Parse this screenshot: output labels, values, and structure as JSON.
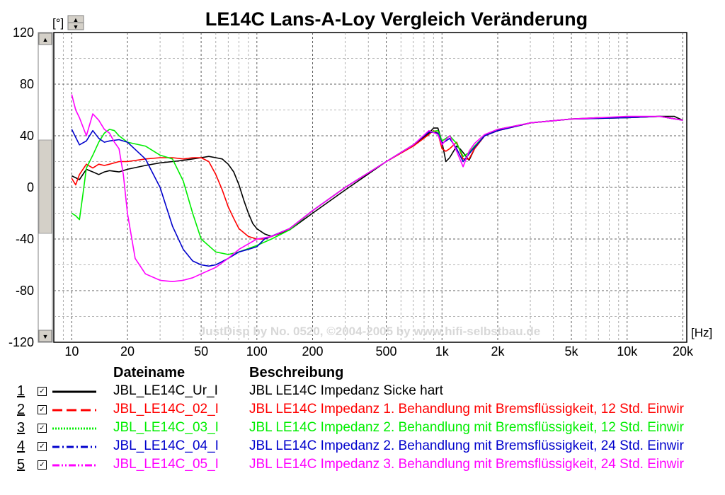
{
  "chart_data": {
    "type": "line",
    "title": "LE14C Lans-A-Loy Vergleich Veränderung",
    "y_unit": "[°]",
    "x_unit": "[Hz]",
    "watermark": "JustDisp by No. 0520, ©2004-2005 by www.hifi-selbstbau.de",
    "x_scale": "log",
    "xlim": [
      8,
      21000
    ],
    "ylim": [
      -120,
      120
    ],
    "grid": true,
    "x_ticks": [
      {
        "value": 10,
        "label": "10"
      },
      {
        "value": 20,
        "label": "20"
      },
      {
        "value": 50,
        "label": "50"
      },
      {
        "value": 100,
        "label": "100"
      },
      {
        "value": 200,
        "label": "200"
      },
      {
        "value": 500,
        "label": "500"
      },
      {
        "value": 1000,
        "label": "1k"
      },
      {
        "value": 2000,
        "label": "2k"
      },
      {
        "value": 5000,
        "label": "5k"
      },
      {
        "value": 10000,
        "label": "10k"
      },
      {
        "value": 20000,
        "label": "20k"
      }
    ],
    "y_ticks": [
      {
        "value": 120,
        "label": "120"
      },
      {
        "value": 80,
        "label": "80"
      },
      {
        "value": 40,
        "label": "40"
      },
      {
        "value": 0,
        "label": "0"
      },
      {
        "value": -40,
        "label": "-40"
      },
      {
        "value": -80,
        "label": "-80"
      },
      {
        "value": -120,
        "label": "-120"
      }
    ],
    "series": [
      {
        "name": "JBL_LE14C_Ur_I",
        "color": "#000000",
        "dash": "solid",
        "points": [
          [
            10,
            9
          ],
          [
            11,
            6
          ],
          [
            12,
            14
          ],
          [
            13,
            12
          ],
          [
            14,
            10
          ],
          [
            15,
            12
          ],
          [
            16,
            13
          ],
          [
            18,
            12
          ],
          [
            20,
            14
          ],
          [
            25,
            17
          ],
          [
            30,
            19
          ],
          [
            35,
            20
          ],
          [
            40,
            21
          ],
          [
            45,
            22
          ],
          [
            50,
            23
          ],
          [
            55,
            24
          ],
          [
            60,
            23
          ],
          [
            65,
            22
          ],
          [
            70,
            18
          ],
          [
            75,
            12
          ],
          [
            80,
            2
          ],
          [
            85,
            -10
          ],
          [
            90,
            -20
          ],
          [
            95,
            -28
          ],
          [
            100,
            -32
          ],
          [
            110,
            -36
          ],
          [
            120,
            -38
          ],
          [
            150,
            -33
          ],
          [
            200,
            -20
          ],
          [
            300,
            -2
          ],
          [
            500,
            20
          ],
          [
            700,
            33
          ],
          [
            850,
            42
          ],
          [
            900,
            46
          ],
          [
            950,
            46
          ],
          [
            1000,
            35
          ],
          [
            1050,
            20
          ],
          [
            1100,
            23
          ],
          [
            1200,
            32
          ],
          [
            1250,
            30
          ],
          [
            1300,
            27
          ],
          [
            1400,
            21
          ],
          [
            1500,
            30
          ],
          [
            1700,
            40
          ],
          [
            2000,
            44
          ],
          [
            3000,
            50
          ],
          [
            5000,
            53
          ],
          [
            7000,
            54
          ],
          [
            10000,
            54
          ],
          [
            15000,
            55
          ],
          [
            18000,
            55
          ],
          [
            20000,
            52
          ]
        ]
      },
      {
        "name": "JBL_LE14C_02_I",
        "color": "#ff0000",
        "dash": "long-dash",
        "points": [
          [
            10,
            7
          ],
          [
            10.5,
            2
          ],
          [
            11,
            10
          ],
          [
            12,
            18
          ],
          [
            13,
            15
          ],
          [
            14,
            18
          ],
          [
            15,
            17
          ],
          [
            16,
            18
          ],
          [
            18,
            20
          ],
          [
            20,
            20
          ],
          [
            25,
            22
          ],
          [
            30,
            23
          ],
          [
            35,
            23
          ],
          [
            40,
            22
          ],
          [
            45,
            23
          ],
          [
            50,
            23
          ],
          [
            55,
            20
          ],
          [
            60,
            10
          ],
          [
            65,
            -2
          ],
          [
            70,
            -15
          ],
          [
            75,
            -24
          ],
          [
            80,
            -32
          ],
          [
            90,
            -38
          ],
          [
            100,
            -40
          ],
          [
            110,
            -40
          ],
          [
            120,
            -38
          ],
          [
            150,
            -32
          ],
          [
            200,
            -18
          ],
          [
            300,
            0
          ],
          [
            500,
            20
          ],
          [
            700,
            32
          ],
          [
            850,
            41
          ],
          [
            900,
            44
          ],
          [
            950,
            42
          ],
          [
            1000,
            30
          ],
          [
            1050,
            28
          ],
          [
            1100,
            30
          ],
          [
            1200,
            35
          ],
          [
            1300,
            22
          ],
          [
            1400,
            22
          ],
          [
            1500,
            30
          ],
          [
            1700,
            40
          ],
          [
            2000,
            44
          ],
          [
            3000,
            50
          ],
          [
            5000,
            53
          ],
          [
            10000,
            54
          ],
          [
            15000,
            55
          ],
          [
            20000,
            52
          ]
        ]
      },
      {
        "name": "JBL_LE14C_03_I",
        "color": "#00ee00",
        "dash": "dotted",
        "points": [
          [
            10,
            -20
          ],
          [
            10.5,
            -22
          ],
          [
            11,
            -25
          ],
          [
            11.5,
            -5
          ],
          [
            12,
            15
          ],
          [
            13,
            25
          ],
          [
            14,
            35
          ],
          [
            15,
            42
          ],
          [
            16,
            45
          ],
          [
            17,
            44
          ],
          [
            18,
            40
          ],
          [
            20,
            35
          ],
          [
            25,
            32
          ],
          [
            30,
            25
          ],
          [
            35,
            22
          ],
          [
            40,
            5
          ],
          [
            45,
            -20
          ],
          [
            50,
            -40
          ],
          [
            60,
            -50
          ],
          [
            70,
            -52
          ],
          [
            80,
            -50
          ],
          [
            100,
            -45
          ],
          [
            120,
            -40
          ],
          [
            150,
            -33
          ],
          [
            200,
            -18
          ],
          [
            300,
            0
          ],
          [
            500,
            20
          ],
          [
            700,
            33
          ],
          [
            850,
            43
          ],
          [
            950,
            44
          ],
          [
            1000,
            36
          ],
          [
            1050,
            38
          ],
          [
            1100,
            40
          ],
          [
            1200,
            34
          ],
          [
            1300,
            24
          ],
          [
            1400,
            27
          ],
          [
            1500,
            32
          ],
          [
            1700,
            40
          ],
          [
            2000,
            45
          ],
          [
            3000,
            50
          ],
          [
            5000,
            53
          ],
          [
            10000,
            54
          ],
          [
            15000,
            55
          ],
          [
            20000,
            52
          ]
        ]
      },
      {
        "name": "JBL_LE14C_04_I",
        "color": "#0000cc",
        "dash": "dash-dot",
        "points": [
          [
            10,
            45
          ],
          [
            11,
            33
          ],
          [
            12,
            36
          ],
          [
            13,
            44
          ],
          [
            14,
            38
          ],
          [
            15,
            35
          ],
          [
            16,
            36
          ],
          [
            18,
            37
          ],
          [
            20,
            35
          ],
          [
            25,
            22
          ],
          [
            30,
            0
          ],
          [
            35,
            -30
          ],
          [
            40,
            -48
          ],
          [
            45,
            -57
          ],
          [
            50,
            -60
          ],
          [
            55,
            -61
          ],
          [
            60,
            -60
          ],
          [
            70,
            -55
          ],
          [
            80,
            -50
          ],
          [
            90,
            -48
          ],
          [
            100,
            -46
          ],
          [
            110,
            -40
          ],
          [
            150,
            -32
          ],
          [
            200,
            -18
          ],
          [
            300,
            0
          ],
          [
            500,
            20
          ],
          [
            700,
            33
          ],
          [
            850,
            43
          ],
          [
            950,
            42
          ],
          [
            1000,
            34
          ],
          [
            1050,
            36
          ],
          [
            1100,
            38
          ],
          [
            1200,
            30
          ],
          [
            1300,
            20
          ],
          [
            1400,
            26
          ],
          [
            1500,
            31
          ],
          [
            1700,
            40
          ],
          [
            2000,
            44
          ],
          [
            3000,
            50
          ],
          [
            5000,
            53
          ],
          [
            10000,
            54
          ],
          [
            15000,
            55
          ],
          [
            20000,
            52
          ]
        ]
      },
      {
        "name": "JBL_LE14C_05_I",
        "color": "#ff00ff",
        "dash": "dash-dot-dot",
        "points": [
          [
            10,
            72
          ],
          [
            10.5,
            60
          ],
          [
            11,
            54
          ],
          [
            12,
            40
          ],
          [
            13,
            57
          ],
          [
            14,
            52
          ],
          [
            15,
            45
          ],
          [
            16,
            42
          ],
          [
            17,
            35
          ],
          [
            18,
            30
          ],
          [
            19,
            10
          ],
          [
            20,
            -20
          ],
          [
            22,
            -55
          ],
          [
            25,
            -67
          ],
          [
            30,
            -72
          ],
          [
            35,
            -73
          ],
          [
            40,
            -72
          ],
          [
            45,
            -70
          ],
          [
            50,
            -67
          ],
          [
            60,
            -62
          ],
          [
            70,
            -55
          ],
          [
            80,
            -48
          ],
          [
            100,
            -40
          ],
          [
            120,
            -38
          ],
          [
            150,
            -32
          ],
          [
            200,
            -18
          ],
          [
            300,
            0
          ],
          [
            500,
            20
          ],
          [
            700,
            33
          ],
          [
            850,
            44
          ],
          [
            950,
            41
          ],
          [
            1000,
            33
          ],
          [
            1050,
            37
          ],
          [
            1100,
            40
          ],
          [
            1200,
            28
          ],
          [
            1300,
            16
          ],
          [
            1400,
            28
          ],
          [
            1500,
            34
          ],
          [
            1700,
            41
          ],
          [
            2000,
            45
          ],
          [
            3000,
            50
          ],
          [
            5000,
            53
          ],
          [
            10000,
            55
          ],
          [
            15000,
            55
          ],
          [
            20000,
            52
          ]
        ]
      }
    ]
  },
  "legend": {
    "header_file": "Dateiname",
    "header_desc": "Beschreibung",
    "rows": [
      {
        "num": "1",
        "check": "☑",
        "file": "JBL_LE14C_Ur_I",
        "desc": "JBL LE14C Impedanz Sicke hart",
        "color": "#000000",
        "dash": "solid"
      },
      {
        "num": "2",
        "check": "☑",
        "file": "JBL_LE14C_02_I",
        "desc": "JBL LE14C Impedanz 1. Behandlung mit Bremsflüssigkeit, 12 Std. Einwir",
        "color": "#ff0000",
        "dash": "long-dash"
      },
      {
        "num": "3",
        "check": "☑",
        "file": "JBL_LE14C_03_I",
        "desc": "JBL LE14C Impedanz 2. Behandlung mit Bremsflüssigkeit, 12 Std. Einwir",
        "color": "#00ee00",
        "dash": "dotted"
      },
      {
        "num": "4",
        "check": "☑",
        "file": "JBL_LE14C_04_I",
        "desc": "JBL LE14C Impedanz 2. Behandlung mit Bremsflüssigkeit, 24 Std. Einwir",
        "color": "#0000cc",
        "dash": "dash-dot"
      },
      {
        "num": "5",
        "check": "☑",
        "file": "JBL_LE14C_05_I",
        "desc": "JBL LE14C Impedanz 3. Behandlung mit Bremsflüssigkeit, 24 Std. Einwir",
        "color": "#ff00ff",
        "dash": "dash-dot-dot"
      }
    ]
  }
}
